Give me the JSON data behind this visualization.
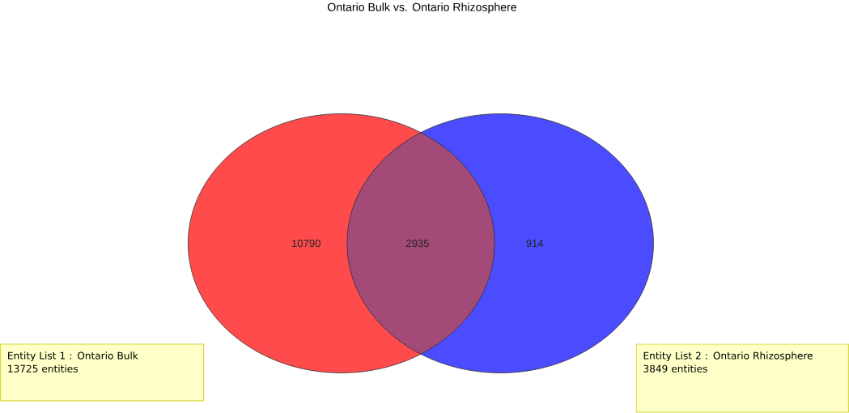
{
  "chart_data": {
    "type": "other",
    "title": "Ontario Bulk vs. Ontario Rhizosphere",
    "categories": [
      null,
      null,
      null
    ],
    "values": [
      10790,
      2935,
      914
    ],
    "colors": [
      "#ff4b4b",
      "#a44a78",
      "#4b4bff"
    ],
    "data_labels": true,
    "annotations": [
      "Entity List 1 : Ontario Bulk",
      "13725 entities",
      "Entity List 2 : Ontario Rhizosphere",
      "3849 entities"
    ]
  }
}
